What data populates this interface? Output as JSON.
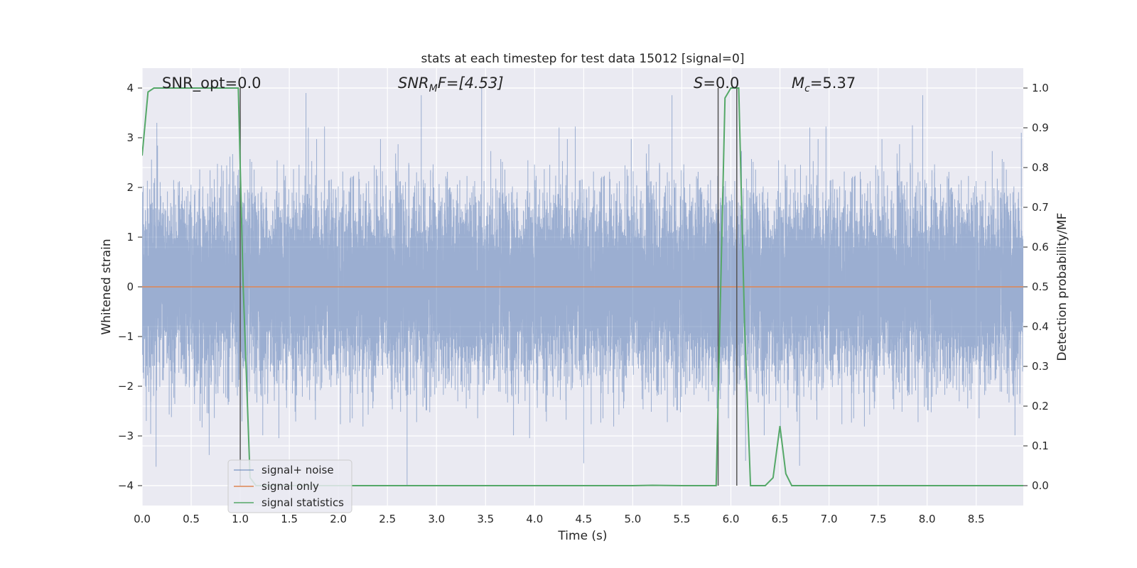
{
  "chart_data": {
    "type": "line",
    "title": "stats at each timestep for test data 15012 [signal=0]",
    "xlabel": "Time (s)",
    "ylabel_left": "Whitened strain",
    "ylabel_right": "Detection probability/MF",
    "xlim": [
      0.0,
      8.98
    ],
    "ylim_left": [
      -4.4,
      4.4
    ],
    "ylim_right": [
      -0.05,
      1.05
    ],
    "x_ticks": [
      0.0,
      0.5,
      1.0,
      1.5,
      2.0,
      2.5,
      3.0,
      3.5,
      4.0,
      4.5,
      5.0,
      5.5,
      6.0,
      6.5,
      7.0,
      7.5,
      8.0,
      8.5
    ],
    "x_tick_labels": [
      "0.0",
      "0.5",
      "1.0",
      "1.5",
      "2.0",
      "2.5",
      "3.0",
      "3.5",
      "4.0",
      "4.5",
      "5.0",
      "5.5",
      "6.0",
      "6.5",
      "7.0",
      "7.5",
      "8.0",
      "8.5"
    ],
    "y_left_ticks": [
      4,
      3,
      2,
      1,
      0,
      -1,
      -2,
      -3,
      -4
    ],
    "y_left_tick_labels": [
      "4",
      "3",
      "2",
      "1",
      "0",
      "−1",
      "−2",
      "−3",
      "−4"
    ],
    "y_right_ticks": [
      1.0,
      0.9,
      0.8,
      0.7,
      0.6,
      0.5,
      0.4,
      0.3,
      0.2,
      0.1,
      0.0
    ],
    "y_right_tick_labels": [
      "1.0",
      "0.9",
      "0.8",
      "0.7",
      "0.6",
      "0.5",
      "0.4",
      "0.3",
      "0.2",
      "0.1",
      "0.0"
    ],
    "grid": true,
    "legend_position": "lower-left",
    "background_color": "#eaeaf2",
    "annotations": {
      "snr_opt": "SNR_opt=0.0",
      "snr_mf_base": "SNR",
      "snr_mf_sub": "M",
      "snr_mf_rest": "F=[4.53]",
      "s_italic": "S",
      "s_value": "=0.0",
      "mc_base": "M",
      "mc_sub": "c",
      "mc_value": "=5.37"
    },
    "series": [
      {
        "name": "signal+ noise",
        "color": "#4c72b0",
        "axis": "left",
        "sample_rate": 2048,
        "envelope_upper_typical": 2.0,
        "envelope_lower_typical": -2.0,
        "notable_spikes": [
          {
            "x": 0.15,
            "y": 3.3
          },
          {
            "x": 1.67,
            "y": 3.9
          },
          {
            "x": 2.7,
            "y": -4.0
          },
          {
            "x": 3.46,
            "y": 4.0
          },
          {
            "x": 4.5,
            "y": -3.55
          },
          {
            "x": 6.06,
            "y": 3.6
          },
          {
            "x": 6.15,
            "y": -3.5
          },
          {
            "x": 6.7,
            "y": -3.6
          },
          {
            "x": 7.85,
            "y": 3.25
          },
          {
            "x": 8.96,
            "y": 3.1
          }
        ]
      },
      {
        "name": "signal only",
        "color": "#dd8452",
        "axis": "left",
        "x": [
          0.0,
          8.98
        ],
        "y": [
          0.0,
          0.0
        ]
      },
      {
        "name": "signal statistics",
        "color": "#55a868",
        "axis": "right",
        "x": [
          0.0,
          0.06,
          0.12,
          0.2,
          0.5,
          0.9,
          0.98,
          1.03,
          1.1,
          1.16,
          1.25,
          2.0,
          3.0,
          4.0,
          5.0,
          5.2,
          5.5,
          5.85,
          5.94,
          6.0,
          6.04,
          6.08,
          6.14,
          6.2,
          6.35,
          6.43,
          6.5,
          6.56,
          6.62,
          7.0,
          8.0,
          8.98
        ],
        "y": [
          0.83,
          0.99,
          1.0,
          1.0,
          1.0,
          1.0,
          1.0,
          0.5,
          0.02,
          0.0,
          0.0,
          0.0,
          0.0,
          0.0,
          0.0,
          0.001,
          0.0,
          0.0,
          0.975,
          1.0,
          1.0,
          1.0,
          0.4,
          0.0,
          0.0,
          0.02,
          0.15,
          0.03,
          0.0,
          0.0,
          0.0,
          0.0
        ]
      }
    ],
    "vertical_lines": [
      1.0,
      5.87,
      6.06
    ]
  }
}
